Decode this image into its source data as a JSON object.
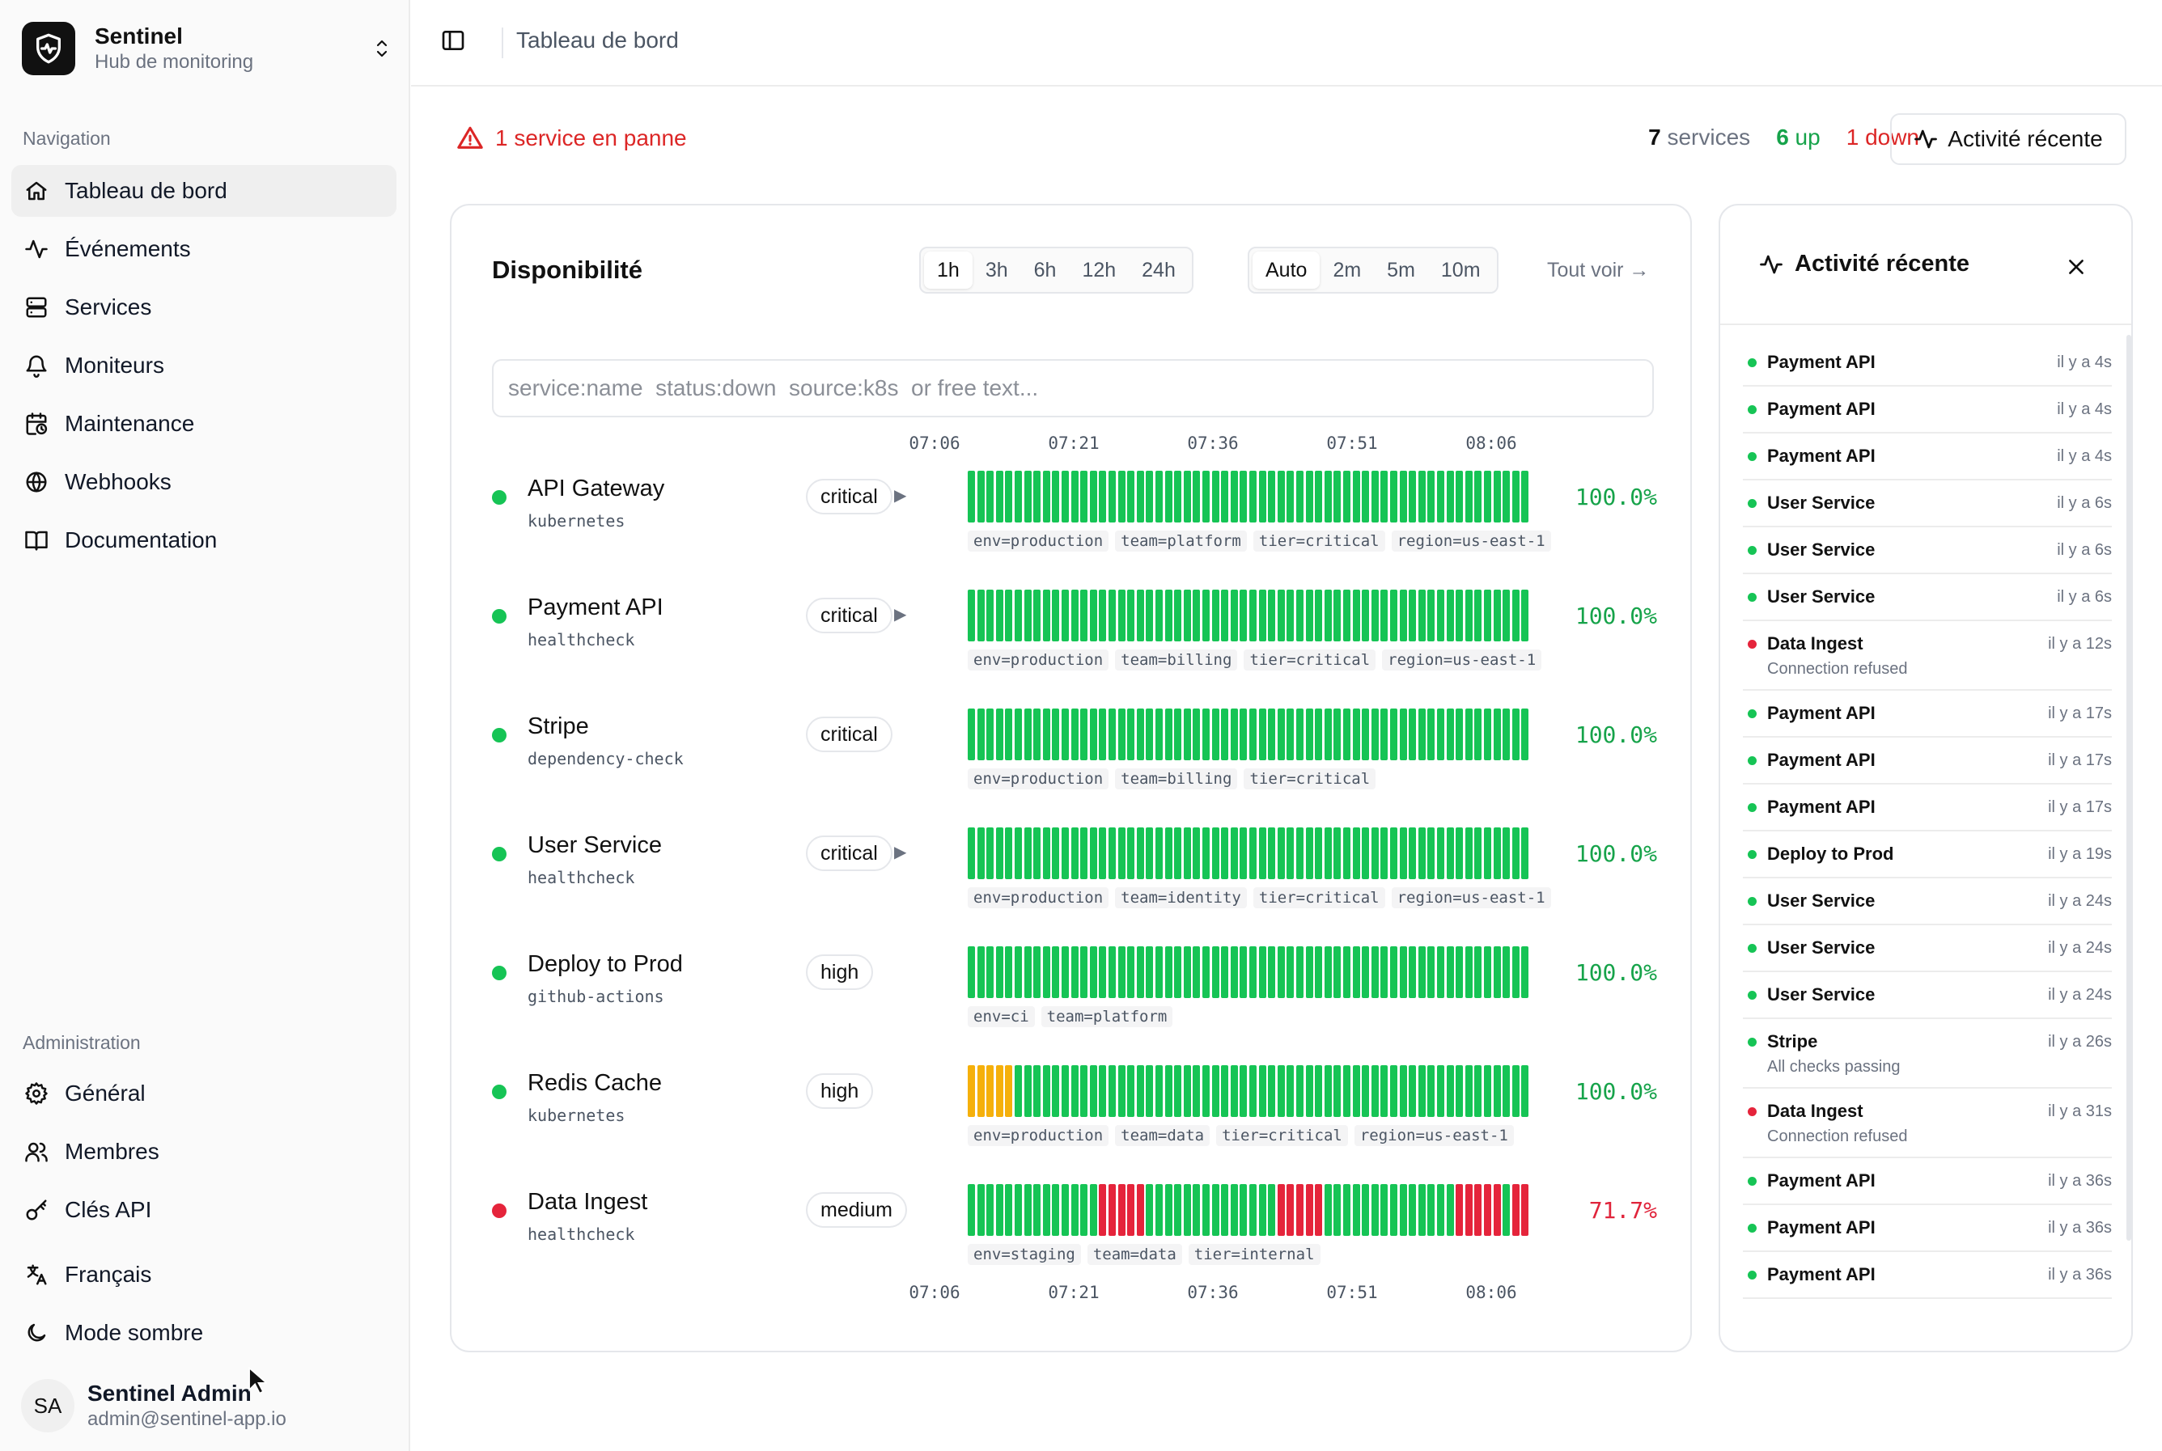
{
  "brand": {
    "name": "Sentinel",
    "subtitle": "Hub de monitoring",
    "logo_icon": "shield-heartbeat-icon"
  },
  "sidebar": {
    "nav_label": "Navigation",
    "nav_items": [
      {
        "label": "Tableau de bord",
        "icon": "home-icon",
        "active": true
      },
      {
        "label": "Événements",
        "icon": "activity-icon"
      },
      {
        "label": "Services",
        "icon": "server-icon"
      },
      {
        "label": "Moniteurs",
        "icon": "bell-icon"
      },
      {
        "label": "Maintenance",
        "icon": "calendar-clock-icon"
      },
      {
        "label": "Webhooks",
        "icon": "globe-icon"
      },
      {
        "label": "Documentation",
        "icon": "book-icon"
      }
    ],
    "admin_label": "Administration",
    "admin_items": [
      {
        "label": "Général",
        "icon": "gear-icon"
      },
      {
        "label": "Membres",
        "icon": "users-icon"
      },
      {
        "label": "Clés API",
        "icon": "key-icon"
      }
    ],
    "language": {
      "label": "Français",
      "icon": "translate-icon"
    },
    "theme": {
      "label": "Mode sombre",
      "icon": "moon-icon"
    },
    "user": {
      "initials": "SA",
      "name": "Sentinel Admin",
      "email": "admin@sentinel-app.io"
    }
  },
  "header": {
    "breadcrumb": "Tableau de bord"
  },
  "alert": {
    "text": "1 service en panne"
  },
  "stats": {
    "total": "7",
    "total_label": "services",
    "up": "6",
    "up_label": "up",
    "down": "1",
    "down_label": "down"
  },
  "activity_button": "Activité récente",
  "colors": {
    "up": "#16c455",
    "down": "#e5243b",
    "degraded": "#f5b00b",
    "accent_green": "#16a34a",
    "accent_red": "#dc2626"
  },
  "availability": {
    "title": "Disponibilité",
    "ranges": [
      "1h",
      "3h",
      "6h",
      "12h",
      "24h"
    ],
    "selected_range": "1h",
    "refresh": [
      "Auto",
      "2m",
      "5m",
      "10m"
    ],
    "selected_refresh": "Auto",
    "see_all": "Tout voir →",
    "search_placeholder": "service:name  status:down  source:k8s  or free text...",
    "axis_ticks": [
      "07:06",
      "07:21",
      "07:36",
      "07:51",
      "08:06"
    ],
    "services": [
      {
        "name": "API Gateway",
        "source": "kubernetes",
        "priority": "critical",
        "expandable": true,
        "uptime": "100.0%",
        "status": "up",
        "tags": [
          "env=production",
          "team=platform",
          "tier=critical",
          "region=us-east-1"
        ],
        "checks": "GGGGGGGGGGGGGGGGGGGGGGGGGGGGGGGGGGGGGGGGGGGGGGGGGGGGGGGGGGGG"
      },
      {
        "name": "Payment API",
        "source": "healthcheck",
        "priority": "critical",
        "expandable": true,
        "uptime": "100.0%",
        "status": "up",
        "tags": [
          "env=production",
          "team=billing",
          "tier=critical",
          "region=us-east-1"
        ],
        "checks": "GGGGGGGGGGGGGGGGGGGGGGGGGGGGGGGGGGGGGGGGGGGGGGGGGGGGGGGGGGGG"
      },
      {
        "name": "Stripe",
        "source": "dependency-check",
        "priority": "critical",
        "expandable": false,
        "uptime": "100.0%",
        "status": "up",
        "tags": [
          "env=production",
          "team=billing",
          "tier=critical"
        ],
        "checks": "GGGGGGGGGGGGGGGGGGGGGGGGGGGGGGGGGGGGGGGGGGGGGGGGGGGGGGGGGGGG"
      },
      {
        "name": "User Service",
        "source": "healthcheck",
        "priority": "critical",
        "expandable": true,
        "uptime": "100.0%",
        "status": "up",
        "tags": [
          "env=production",
          "team=identity",
          "tier=critical",
          "region=us-east-1"
        ],
        "checks": "GGGGGGGGGGGGGGGGGGGGGGGGGGGGGGGGGGGGGGGGGGGGGGGGGGGGGGGGGGGG"
      },
      {
        "name": "Deploy to Prod",
        "source": "github-actions",
        "priority": "high",
        "expandable": false,
        "uptime": "100.0%",
        "status": "up",
        "tags": [
          "env=ci",
          "team=platform"
        ],
        "checks": "GGGGGGGGGGGGGGGGGGGGGGGGGGGGGGGGGGGGGGGGGGGGGGGGGGGGGGGGGGGG"
      },
      {
        "name": "Redis Cache",
        "source": "kubernetes",
        "priority": "high",
        "expandable": false,
        "uptime": "100.0%",
        "status": "up",
        "tags": [
          "env=production",
          "team=data",
          "tier=critical",
          "region=us-east-1"
        ],
        "checks": "YYYYYGGGGGGGGGGGGGGGGGGGGGGGGGGGGGGGGGGGGGGGGGGGGGGGGGGGGGGG"
      },
      {
        "name": "Data Ingest",
        "source": "healthcheck",
        "priority": "medium",
        "expandable": false,
        "uptime": "71.7%",
        "status": "down",
        "tags": [
          "env=staging",
          "team=data",
          "tier=internal"
        ],
        "checks": "GGGGGGGGGGGGGGRRRRRGGGGGGGGGGGGGGRRRRRGGGGGGGGGGGGGGRRRRRGRR"
      }
    ]
  },
  "activity": {
    "title": "Activité récente",
    "events": [
      {
        "service": "Payment API",
        "time": "il y a 4s",
        "status": "up"
      },
      {
        "service": "Payment API",
        "time": "il y a 4s",
        "status": "up"
      },
      {
        "service": "Payment API",
        "time": "il y a 4s",
        "status": "up"
      },
      {
        "service": "User Service",
        "time": "il y a 6s",
        "status": "up"
      },
      {
        "service": "User Service",
        "time": "il y a 6s",
        "status": "up"
      },
      {
        "service": "User Service",
        "time": "il y a 6s",
        "status": "up"
      },
      {
        "service": "Data Ingest",
        "time": "il y a 12s",
        "status": "down",
        "message": "Connection refused"
      },
      {
        "service": "Payment API",
        "time": "il y a 17s",
        "status": "up"
      },
      {
        "service": "Payment API",
        "time": "il y a 17s",
        "status": "up"
      },
      {
        "service": "Payment API",
        "time": "il y a 17s",
        "status": "up"
      },
      {
        "service": "Deploy to Prod",
        "time": "il y a 19s",
        "status": "up"
      },
      {
        "service": "User Service",
        "time": "il y a 24s",
        "status": "up"
      },
      {
        "service": "User Service",
        "time": "il y a 24s",
        "status": "up"
      },
      {
        "service": "User Service",
        "time": "il y a 24s",
        "status": "up"
      },
      {
        "service": "Stripe",
        "time": "il y a 26s",
        "status": "up",
        "message": "All checks passing"
      },
      {
        "service": "Data Ingest",
        "time": "il y a 31s",
        "status": "down",
        "message": "Connection refused"
      },
      {
        "service": "Payment API",
        "time": "il y a 36s",
        "status": "up"
      },
      {
        "service": "Payment API",
        "time": "il y a 36s",
        "status": "up"
      },
      {
        "service": "Payment API",
        "time": "il y a 36s",
        "status": "up"
      }
    ]
  }
}
